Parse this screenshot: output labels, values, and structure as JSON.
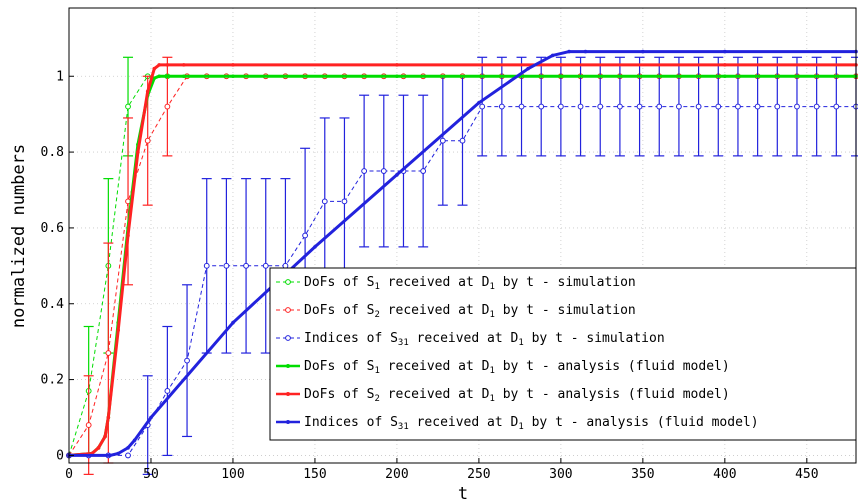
{
  "chart_data": {
    "type": "line",
    "xlabel": "t",
    "ylabel": "normalized numbers",
    "xlim": [
      0,
      480
    ],
    "ylim": [
      -0.02,
      1.18
    ],
    "xticks": [
      0,
      50,
      100,
      150,
      200,
      250,
      300,
      350,
      400,
      450
    ],
    "yticks": [
      0,
      0.2,
      0.4,
      0.6,
      0.8,
      1
    ],
    "grid": true,
    "legend_position": "bottom-right",
    "series": [
      {
        "kind": "simulation",
        "color": "#00dd00",
        "label": {
          "a": "DoFs of S",
          "b": "1",
          "c": " received at D",
          "d": "1",
          "e": " by t - simulation"
        },
        "x": [
          0,
          12,
          24,
          36,
          48,
          60,
          72,
          84,
          96,
          108,
          120,
          132,
          144,
          156,
          168,
          180,
          192,
          204,
          216,
          228,
          240,
          252,
          264,
          276,
          288,
          300,
          312,
          324,
          336,
          348,
          360,
          372,
          384,
          396,
          408,
          420,
          432,
          444,
          456,
          468,
          480
        ],
        "y": [
          0,
          0.17,
          0.5,
          0.92,
          1,
          1,
          1,
          1,
          1,
          1,
          1,
          1,
          1,
          1,
          1,
          1,
          1,
          1,
          1,
          1,
          1,
          1,
          1,
          1,
          1,
          1,
          1,
          1,
          1,
          1,
          1,
          1,
          1,
          1,
          1,
          1,
          1,
          1,
          1,
          1,
          1
        ],
        "err": [
          0,
          0.17,
          0.23,
          0.13,
          0,
          0,
          0,
          0,
          0,
          0,
          0,
          0,
          0,
          0,
          0,
          0,
          0,
          0,
          0,
          0,
          0,
          0,
          0,
          0,
          0,
          0,
          0,
          0,
          0,
          0,
          0,
          0,
          0,
          0,
          0,
          0,
          0,
          0,
          0,
          0,
          0
        ]
      },
      {
        "kind": "simulation",
        "color": "#ff2222",
        "label": {
          "a": "DoFs of S",
          "b": "2",
          "c": " received at D",
          "d": "1",
          "e": " by t - simulation"
        },
        "x": [
          0,
          12,
          24,
          36,
          48,
          60,
          72,
          84,
          96,
          108,
          120,
          132,
          144,
          156,
          168,
          180,
          192,
          204,
          216,
          228,
          240,
          252,
          264,
          276,
          288,
          300,
          312,
          324,
          336,
          348,
          360,
          372,
          384,
          396,
          408,
          420,
          432,
          444,
          456,
          468,
          480
        ],
        "y": [
          0,
          0.08,
          0.27,
          0.67,
          0.83,
          0.92,
          1,
          1,
          1,
          1,
          1,
          1,
          1,
          1,
          1,
          1,
          1,
          1,
          1,
          1,
          1,
          1,
          1,
          1,
          1,
          1,
          1,
          1,
          1,
          1,
          1,
          1,
          1,
          1,
          1,
          1,
          1,
          1,
          1,
          1,
          1
        ],
        "err": [
          0,
          0.13,
          0.29,
          0.22,
          0.17,
          0.13,
          0,
          0,
          0,
          0,
          0,
          0,
          0,
          0,
          0,
          0,
          0,
          0,
          0,
          0,
          0,
          0,
          0,
          0,
          0,
          0,
          0,
          0,
          0,
          0,
          0,
          0,
          0,
          0,
          0,
          0,
          0,
          0,
          0,
          0,
          0
        ]
      },
      {
        "kind": "simulation",
        "color": "#2222dd",
        "label": {
          "a": "Indices of S",
          "b": "31",
          "c": " received at D",
          "d": "1",
          "e": " by t - simulation"
        },
        "x": [
          0,
          12,
          24,
          36,
          48,
          60,
          72,
          84,
          96,
          108,
          120,
          132,
          144,
          156,
          168,
          180,
          192,
          204,
          216,
          228,
          240,
          252,
          264,
          276,
          288,
          300,
          312,
          324,
          336,
          348,
          360,
          372,
          384,
          396,
          408,
          420,
          432,
          444,
          456,
          468,
          480
        ],
        "y": [
          0,
          0,
          0,
          0,
          0.08,
          0.17,
          0.25,
          0.5,
          0.5,
          0.5,
          0.5,
          0.5,
          0.58,
          0.67,
          0.67,
          0.75,
          0.75,
          0.75,
          0.75,
          0.83,
          0.83,
          0.92,
          0.92,
          0.92,
          0.92,
          0.92,
          0.92,
          0.92,
          0.92,
          0.92,
          0.92,
          0.92,
          0.92,
          0.92,
          0.92,
          0.92,
          0.92,
          0.92,
          0.92,
          0.92,
          0.92
        ],
        "err": [
          0,
          0,
          0,
          0,
          0.13,
          0.17,
          0.2,
          0.23,
          0.23,
          0.23,
          0.23,
          0.23,
          0.23,
          0.22,
          0.22,
          0.2,
          0.2,
          0.2,
          0.2,
          0.17,
          0.17,
          0.13,
          0.13,
          0.13,
          0.13,
          0.13,
          0.13,
          0.13,
          0.13,
          0.13,
          0.13,
          0.13,
          0.13,
          0.13,
          0.13,
          0.13,
          0.13,
          0.13,
          0.13,
          0.13,
          0.13
        ]
      },
      {
        "kind": "analysis",
        "color": "#00dd00",
        "label": {
          "a": "DoFs of S",
          "b": "1",
          "c": " received at D",
          "d": "1",
          "e": " by t - analysis (fluid model)"
        },
        "x": [
          0,
          14,
          18,
          22,
          24,
          30,
          36,
          42,
          48,
          52,
          55,
          60,
          70,
          100,
          200,
          300,
          400,
          480
        ],
        "y": [
          0,
          0.005,
          0.02,
          0.05,
          0.1,
          0.35,
          0.6,
          0.82,
          0.95,
          0.995,
          1,
          1,
          1,
          1,
          1,
          1,
          1,
          1
        ]
      },
      {
        "kind": "analysis",
        "color": "#ff2222",
        "label": {
          "a": "DoFs of S",
          "b": "2",
          "c": " received at D",
          "d": "1",
          "e": " by t - analysis (fluid model)"
        },
        "x": [
          0,
          14,
          18,
          22,
          24,
          30,
          36,
          42,
          48,
          52,
          55,
          60,
          70,
          100,
          200,
          300,
          400,
          480
        ],
        "y": [
          0,
          0.005,
          0.02,
          0.05,
          0.1,
          0.33,
          0.58,
          0.8,
          0.96,
          1.02,
          1.03,
          1.03,
          1.03,
          1.03,
          1.03,
          1.03,
          1.03,
          1.03
        ]
      },
      {
        "kind": "analysis",
        "color": "#2222dd",
        "label": {
          "a": "Indices of S",
          "b": "31",
          "c": " received at D",
          "d": "1",
          "e": " by t - analysis (fluid model)"
        },
        "x": [
          0,
          25,
          30,
          36,
          40,
          50,
          100,
          150,
          200,
          250,
          280,
          295,
          305,
          315,
          350,
          400,
          480
        ],
        "y": [
          0,
          0,
          0.005,
          0.02,
          0.04,
          0.1,
          0.35,
          0.55,
          0.74,
          0.93,
          1.02,
          1.055,
          1.065,
          1.065,
          1.065,
          1.065,
          1.065
        ]
      }
    ]
  }
}
